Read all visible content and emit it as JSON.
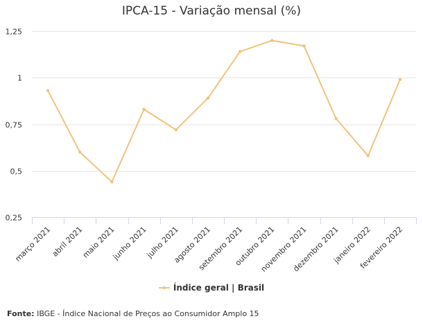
{
  "chart_data": {
    "type": "line",
    "title": "IPCA-15 - Variação mensal (%)",
    "categories": [
      "março 2021",
      "abril 2021",
      "maio 2021",
      "junho 2021",
      "julho 2021",
      "agosto 2021",
      "setembro 2021",
      "outubro 2021",
      "novembro 2021",
      "dezembro 2021",
      "janeiro 2022",
      "fevereiro 2022"
    ],
    "series": [
      {
        "name": "Índice geral | Brasil",
        "values": [
          0.93,
          0.6,
          0.44,
          0.83,
          0.72,
          0.89,
          1.14,
          1.2,
          1.17,
          0.78,
          0.58,
          0.99
        ],
        "color": "#f1c27b"
      }
    ],
    "ylim": [
      0.25,
      1.25
    ],
    "yticks": [
      0.25,
      0.5,
      0.75,
      1,
      1.25
    ],
    "ytick_labels": [
      "0,25",
      "0,5",
      "0,75",
      "1",
      "1,25"
    ],
    "grid": true,
    "legend_position": "bottom-center"
  },
  "source": {
    "label": "Fonte:",
    "text": "IBGE - Índice Nacional de Preços ao Consumidor Amplo 15"
  }
}
